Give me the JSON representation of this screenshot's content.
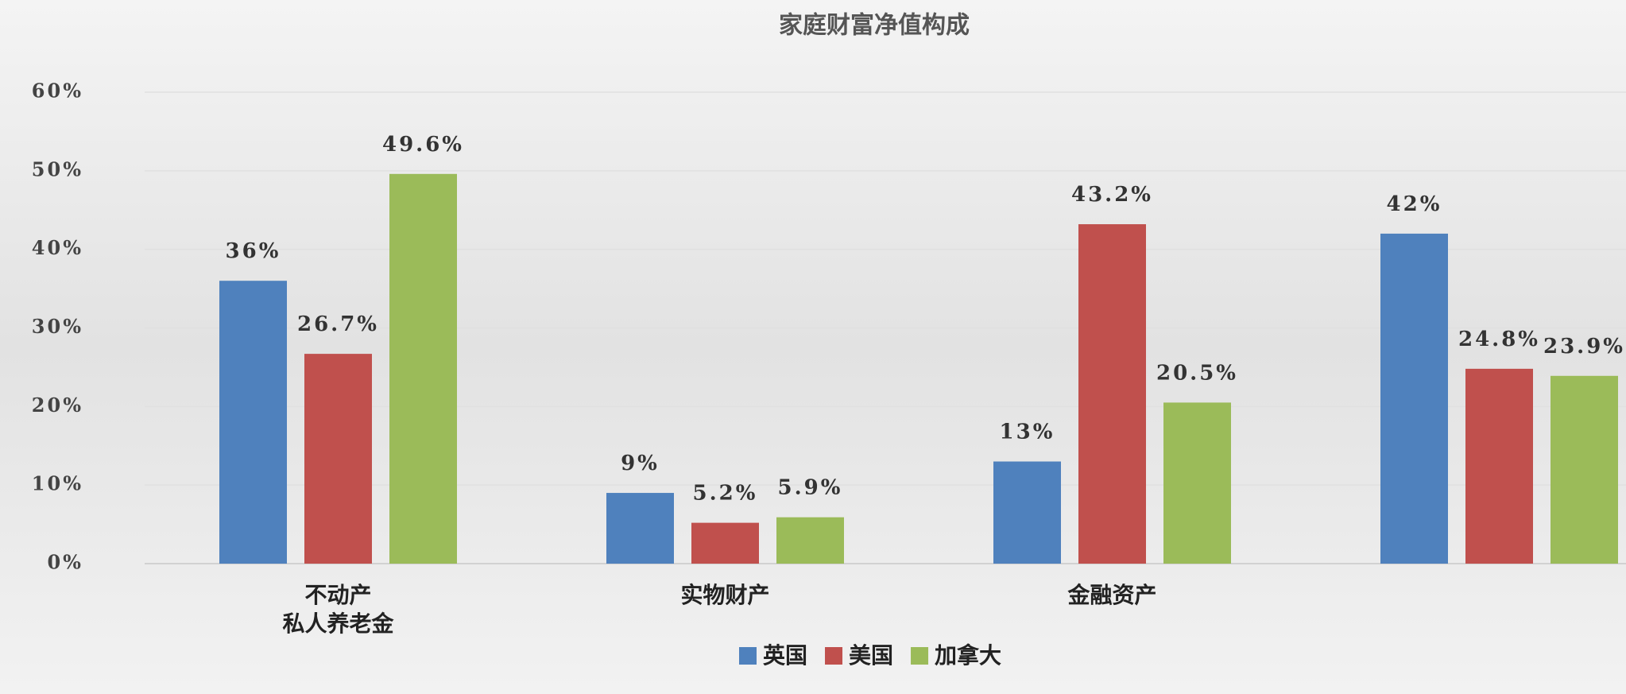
{
  "chart_data": {
    "type": "bar",
    "title": "家庭财富净值构成",
    "categories": [
      [
        "不动产",
        "私人养老金"
      ],
      "实物财产",
      "金融资产",
      null
    ],
    "series": [
      {
        "name": "英国",
        "color": "#4f81bd",
        "values": [
          36,
          9,
          13,
          42
        ],
        "value_labels": [
          "36%",
          "9%",
          "13%",
          "42%"
        ]
      },
      {
        "name": "美国",
        "color": "#c0504d",
        "values": [
          26.7,
          5.2,
          43.2,
          24.8
        ],
        "value_labels": [
          "26.7%",
          "5.2%",
          "43.2%",
          "24.8%"
        ]
      },
      {
        "name": "加拿大",
        "color": "#9bbb59",
        "values": [
          49.6,
          5.9,
          20.5,
          23.9
        ],
        "value_labels": [
          "49.6%",
          "5.9%",
          "20.5%",
          "23.9%"
        ]
      }
    ],
    "ylim": [
      0,
      60
    ],
    "yticks": [
      {
        "value": 0,
        "label": "0%"
      },
      {
        "value": 10,
        "label": "10%"
      },
      {
        "value": 20,
        "label": "20%"
      },
      {
        "value": 30,
        "label": "30%"
      },
      {
        "value": 40,
        "label": "40%"
      },
      {
        "value": 50,
        "label": "50%"
      },
      {
        "value": 60,
        "label": "60%"
      }
    ],
    "grid": true
  }
}
